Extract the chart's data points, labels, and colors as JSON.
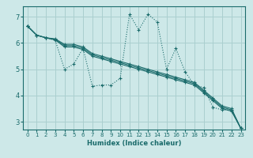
{
  "xlabel": "Humidex (Indice chaleur)",
  "background_color": "#cde8e8",
  "grid_color": "#aacfcf",
  "line_color": "#1a6b6b",
  "xlim": [
    -0.5,
    23.5
  ],
  "ylim": [
    2.7,
    7.4
  ],
  "xticks": [
    0,
    1,
    2,
    3,
    4,
    5,
    6,
    7,
    8,
    9,
    10,
    11,
    12,
    13,
    14,
    15,
    16,
    17,
    18,
    19,
    20,
    21,
    22,
    23
  ],
  "yticks": [
    3,
    4,
    5,
    6,
    7
  ],
  "lines": [
    {
      "x": [
        0,
        1,
        2,
        3,
        4,
        5,
        6,
        7,
        8,
        9,
        10,
        11,
        12,
        13,
        14,
        15,
        16,
        17,
        18,
        19,
        20,
        21,
        22,
        23
      ],
      "y": [
        6.65,
        6.3,
        6.2,
        6.1,
        5.0,
        5.2,
        5.8,
        4.35,
        4.4,
        4.4,
        4.65,
        7.1,
        6.5,
        7.1,
        6.8,
        5.0,
        5.8,
        4.9,
        4.4,
        4.3,
        3.55,
        3.45,
        3.45,
        2.75
      ],
      "style": "dotted",
      "marker": true
    },
    {
      "x": [
        0,
        1,
        2,
        3,
        4,
        5,
        6,
        7,
        8,
        9,
        10,
        11,
        12,
        13,
        14,
        15,
        16,
        17,
        18,
        19,
        20,
        21,
        22,
        23
      ],
      "y": [
        6.65,
        6.3,
        6.2,
        6.12,
        5.85,
        5.85,
        5.75,
        5.5,
        5.4,
        5.3,
        5.2,
        5.1,
        5.0,
        4.9,
        4.8,
        4.7,
        4.6,
        4.5,
        4.4,
        4.1,
        3.8,
        3.5,
        3.4,
        2.75
      ],
      "style": "solid",
      "marker": true
    },
    {
      "x": [
        0,
        1,
        2,
        3,
        4,
        5,
        6,
        7,
        8,
        9,
        10,
        11,
        12,
        13,
        14,
        15,
        16,
        17,
        18,
        19,
        20,
        21,
        22,
        23
      ],
      "y": [
        6.65,
        6.3,
        6.2,
        6.14,
        5.9,
        5.9,
        5.8,
        5.55,
        5.45,
        5.35,
        5.25,
        5.15,
        5.05,
        4.95,
        4.85,
        4.75,
        4.65,
        4.55,
        4.45,
        4.15,
        3.85,
        3.55,
        3.45,
        2.75
      ],
      "style": "solid",
      "marker": true
    },
    {
      "x": [
        0,
        1,
        2,
        3,
        4,
        5,
        6,
        7,
        8,
        9,
        10,
        11,
        12,
        13,
        14,
        15,
        16,
        17,
        18,
        19,
        20,
        21,
        22,
        23
      ],
      "y": [
        6.65,
        6.3,
        6.2,
        6.16,
        5.95,
        5.95,
        5.85,
        5.6,
        5.5,
        5.4,
        5.3,
        5.2,
        5.1,
        5.0,
        4.9,
        4.8,
        4.7,
        4.6,
        4.5,
        4.2,
        3.9,
        3.6,
        3.5,
        2.75
      ],
      "style": "solid",
      "marker": true
    }
  ]
}
